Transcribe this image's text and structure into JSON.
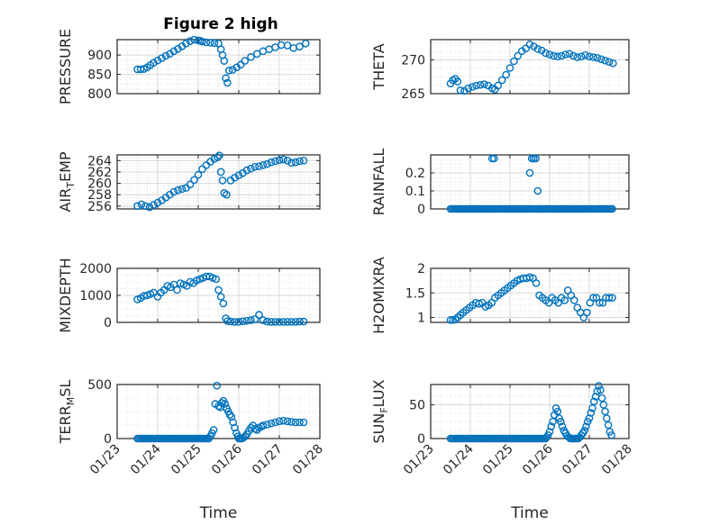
{
  "figure_title": "Figure 2 high",
  "colors": {
    "marker": "#0072BD",
    "axis": "#262626",
    "grid": "#d9d9d9"
  },
  "chart_data": [
    {
      "type": "scatter",
      "ylabel": "PRESSURE",
      "title": "Figure 2 high",
      "xlabel": "",
      "ylim": [
        800,
        940
      ],
      "yticks": [
        800,
        850,
        900
      ],
      "xlim": [
        0,
        5
      ],
      "show_xtick_labels": false,
      "x": [
        0.5,
        0.58,
        0.66,
        0.74,
        0.82,
        0.9,
        1.0,
        1.1,
        1.2,
        1.3,
        1.4,
        1.5,
        1.6,
        1.7,
        1.8,
        1.9,
        2.0,
        2.05,
        2.1,
        2.2,
        2.3,
        2.4,
        2.5,
        2.56,
        2.6,
        2.64,
        2.68,
        2.72,
        2.76,
        2.85,
        2.95,
        3.05,
        3.15,
        3.3,
        3.45,
        3.6,
        3.75,
        3.9,
        4.05,
        4.2,
        4.35,
        4.5,
        4.65
      ],
      "y": [
        863,
        863,
        864,
        868,
        874,
        880,
        886,
        892,
        898,
        903,
        910,
        916,
        923,
        930,
        936,
        940,
        938,
        937,
        935,
        933,
        932,
        931,
        930,
        915,
        900,
        885,
        840,
        828,
        860,
        862,
        868,
        875,
        885,
        895,
        903,
        910,
        915,
        920,
        926,
        925,
        918,
        922,
        930
      ]
    },
    {
      "type": "scatter",
      "ylabel": "THETA",
      "xlabel": "",
      "ylim": [
        265,
        273
      ],
      "yticks": [
        265,
        270
      ],
      "xlim": [
        0,
        5
      ],
      "show_xtick_labels": false,
      "x": [
        0.5,
        0.56,
        0.62,
        0.68,
        0.75,
        0.85,
        0.95,
        1.05,
        1.15,
        1.25,
        1.35,
        1.45,
        1.55,
        1.62,
        1.7,
        1.8,
        1.9,
        2.0,
        2.1,
        2.2,
        2.3,
        2.4,
        2.5,
        2.6,
        2.7,
        2.8,
        2.9,
        3.0,
        3.1,
        3.2,
        3.3,
        3.4,
        3.5,
        3.6,
        3.7,
        3.8,
        3.9,
        4.0,
        4.1,
        4.2,
        4.3,
        4.4,
        4.5,
        4.6
      ],
      "y": [
        266.5,
        267.0,
        267.2,
        266.8,
        265.5,
        265.4,
        265.8,
        266.0,
        266.2,
        266.3,
        266.4,
        266.2,
        265.8,
        265.6,
        266.2,
        267.0,
        267.8,
        268.8,
        269.8,
        270.6,
        271.3,
        271.7,
        272.3,
        272.0,
        271.6,
        271.4,
        271.0,
        270.8,
        270.6,
        270.5,
        270.6,
        270.8,
        270.9,
        270.6,
        270.4,
        270.5,
        270.7,
        270.5,
        270.4,
        270.3,
        270.1,
        269.9,
        269.7,
        269.5
      ]
    },
    {
      "type": "scatter",
      "ylabel": "AIR_TEMP",
      "ylabel_main": "AIR",
      "ylabel_sub": "T",
      "ylabel_rest": "EMP",
      "xlabel": "",
      "ylim": [
        255.5,
        265
      ],
      "yticks": [
        256,
        258,
        260,
        262,
        264
      ],
      "xlim": [
        0,
        5
      ],
      "show_xtick_labels": false,
      "x": [
        0.5,
        0.6,
        0.7,
        0.8,
        0.9,
        1.0,
        1.1,
        1.2,
        1.3,
        1.4,
        1.5,
        1.6,
        1.7,
        1.8,
        1.9,
        2.0,
        2.1,
        2.2,
        2.3,
        2.4,
        2.48,
        2.52,
        2.56,
        2.6,
        2.64,
        2.7,
        2.8,
        2.9,
        3.0,
        3.1,
        3.2,
        3.3,
        3.4,
        3.5,
        3.6,
        3.7,
        3.8,
        3.9,
        4.0,
        4.1,
        4.2,
        4.3,
        4.4,
        4.5,
        4.6
      ],
      "y": [
        256.0,
        256.3,
        256.0,
        255.8,
        256.2,
        256.6,
        257.0,
        257.5,
        258.0,
        258.5,
        258.8,
        259.0,
        259.2,
        259.8,
        260.6,
        261.5,
        262.5,
        263.2,
        263.8,
        264.3,
        264.6,
        264.9,
        262.0,
        260.5,
        258.3,
        258.0,
        260.5,
        261.0,
        261.4,
        261.8,
        262.3,
        262.6,
        262.9,
        263.0,
        263.2,
        263.4,
        263.7,
        263.9,
        264.1,
        264.2,
        264.0,
        263.6,
        263.7,
        263.9,
        264.0
      ]
    },
    {
      "type": "scatter",
      "ylabel": "RAINFALL",
      "xlabel": "",
      "ylim": [
        0,
        0.3
      ],
      "yticks": [
        0,
        0.1,
        0.2
      ],
      "xlim": [
        0,
        5
      ],
      "show_xtick_labels": false,
      "zero_range": [
        0.5,
        4.6
      ],
      "zero_step": 0.04,
      "x": [
        1.55,
        1.6,
        2.5,
        2.55,
        2.6,
        2.65,
        2.7,
        2.75
      ],
      "y": [
        0.28,
        0.28,
        0.2,
        0.28,
        0.28,
        0.28,
        0.1,
        0.0
      ]
    },
    {
      "type": "scatter",
      "ylabel": "MIXDEPTH",
      "xlabel": "",
      "ylim": [
        0,
        2000
      ],
      "yticks": [
        0,
        1000,
        2000
      ],
      "xlim": [
        0,
        5
      ],
      "show_xtick_labels": false,
      "x": [
        0.5,
        0.58,
        0.66,
        0.74,
        0.82,
        0.9,
        1.0,
        1.08,
        1.16,
        1.24,
        1.32,
        1.4,
        1.48,
        1.56,
        1.64,
        1.72,
        1.8,
        1.88,
        1.96,
        2.04,
        2.12,
        2.2,
        2.28,
        2.36,
        2.44,
        2.5,
        2.56,
        2.62,
        2.68,
        2.72,
        2.8,
        2.9,
        3.0,
        3.1,
        3.2,
        3.3,
        3.4,
        3.5,
        3.6,
        3.7,
        3.8,
        3.9,
        4.0,
        4.1,
        4.2,
        4.3,
        4.4,
        4.5,
        4.6
      ],
      "y": [
        850,
        900,
        980,
        1000,
        1050,
        1100,
        950,
        1100,
        1200,
        1350,
        1300,
        1400,
        1200,
        1450,
        1400,
        1350,
        1500,
        1450,
        1550,
        1600,
        1650,
        1700,
        1700,
        1650,
        1600,
        1200,
        950,
        700,
        150,
        50,
        30,
        20,
        20,
        40,
        60,
        80,
        120,
        280,
        80,
        30,
        20,
        20,
        20,
        20,
        20,
        20,
        20,
        30,
        30
      ]
    },
    {
      "type": "scatter",
      "ylabel": "H2OMIXRA",
      "xlabel": "",
      "ylim": [
        0.9,
        2
      ],
      "yticks": [
        1,
        1.5,
        2
      ],
      "xlim": [
        0,
        5
      ],
      "show_xtick_labels": false,
      "x": [
        0.5,
        0.56,
        0.62,
        0.68,
        0.75,
        0.82,
        0.9,
        0.98,
        1.06,
        1.14,
        1.22,
        1.3,
        1.38,
        1.46,
        1.54,
        1.62,
        1.7,
        1.78,
        1.86,
        1.94,
        2.02,
        2.1,
        2.18,
        2.26,
        2.34,
        2.42,
        2.5,
        2.58,
        2.66,
        2.74,
        2.82,
        2.9,
        2.98,
        3.06,
        3.14,
        3.22,
        3.3,
        3.38,
        3.46,
        3.54,
        3.62,
        3.7,
        3.78,
        3.86,
        3.94,
        4.02,
        4.1,
        4.18,
        4.26,
        4.34,
        4.42,
        4.5,
        4.58
      ],
      "y": [
        0.95,
        0.95,
        0.96,
        1.0,
        1.05,
        1.1,
        1.15,
        1.2,
        1.25,
        1.3,
        1.28,
        1.3,
        1.22,
        1.25,
        1.3,
        1.4,
        1.45,
        1.5,
        1.55,
        1.6,
        1.65,
        1.7,
        1.75,
        1.78,
        1.8,
        1.8,
        1.82,
        1.8,
        1.7,
        1.45,
        1.4,
        1.35,
        1.3,
        1.4,
        1.35,
        1.3,
        1.4,
        1.35,
        1.55,
        1.45,
        1.35,
        1.2,
        1.1,
        1.0,
        1.1,
        1.3,
        1.4,
        1.4,
        1.3,
        1.3,
        1.4,
        1.4,
        1.4
      ]
    },
    {
      "type": "scatter",
      "ylabel": "TERR_MSL",
      "ylabel_main": "TERR",
      "ylabel_sub": "M",
      "ylabel_rest": "SL",
      "xlabel": "Time",
      "ylim": [
        0,
        500
      ],
      "yticks": [
        0,
        500
      ],
      "xlim": [
        0,
        5
      ],
      "show_xtick_labels": true,
      "xticklabels": [
        "01/23",
        "01/24",
        "01/25",
        "01/26",
        "01/27",
        "01/28"
      ],
      "zero_range": [
        0.5,
        2.28
      ],
      "zero_step": 0.04,
      "x": [
        2.3,
        2.34,
        2.38,
        2.42,
        2.46,
        2.5,
        2.54,
        2.58,
        2.62,
        2.66,
        2.7,
        2.74,
        2.78,
        2.82,
        2.86,
        2.9,
        2.94,
        2.98,
        3.0,
        3.04,
        3.08,
        3.12,
        3.16,
        3.2,
        3.25,
        3.3,
        3.35,
        3.4,
        3.45,
        3.5,
        3.55,
        3.6,
        3.7,
        3.8,
        3.9,
        4.0,
        4.1,
        4.2,
        4.3,
        4.4,
        4.5,
        4.6
      ],
      "y": [
        20,
        50,
        80,
        320,
        490,
        300,
        290,
        330,
        350,
        320,
        280,
        250,
        220,
        200,
        150,
        100,
        50,
        20,
        0,
        0,
        0,
        10,
        20,
        40,
        70,
        100,
        120,
        90,
        80,
        100,
        110,
        120,
        130,
        140,
        150,
        160,
        165,
        160,
        155,
        150,
        150,
        150
      ]
    },
    {
      "type": "scatter",
      "ylabel": "SUN_FLUX",
      "ylabel_main": "SUN",
      "ylabel_sub": "F",
      "ylabel_rest": "LUX",
      "xlabel": "Time",
      "ylim": [
        0,
        80
      ],
      "yticks": [
        0,
        50
      ],
      "xlim": [
        0,
        5
      ],
      "show_xtick_labels": true,
      "xticklabels": [
        "01/23",
        "01/24",
        "01/25",
        "01/26",
        "01/27",
        "01/28"
      ],
      "zero_range": [
        0.5,
        2.9
      ],
      "zero_step": 0.04,
      "x": [
        2.92,
        2.96,
        3.0,
        3.04,
        3.08,
        3.12,
        3.16,
        3.2,
        3.24,
        3.28,
        3.32,
        3.36,
        3.4,
        3.44,
        3.48,
        3.52,
        3.56,
        3.6,
        3.64,
        3.68,
        3.72,
        3.76,
        3.8,
        3.84,
        3.88,
        3.92,
        3.96,
        4.0,
        4.04,
        4.08,
        4.12,
        4.16,
        4.2,
        4.24,
        4.28,
        4.32,
        4.36,
        4.4,
        4.44,
        4.48,
        4.52,
        4.56
      ],
      "y": [
        2,
        5,
        10,
        18,
        25,
        35,
        45,
        40,
        30,
        25,
        18,
        12,
        8,
        4,
        2,
        0,
        0,
        0,
        0,
        0,
        0,
        2,
        5,
        8,
        12,
        18,
        25,
        30,
        38,
        45,
        55,
        62,
        70,
        78,
        72,
        60,
        50,
        40,
        30,
        20,
        10,
        5
      ]
    }
  ]
}
